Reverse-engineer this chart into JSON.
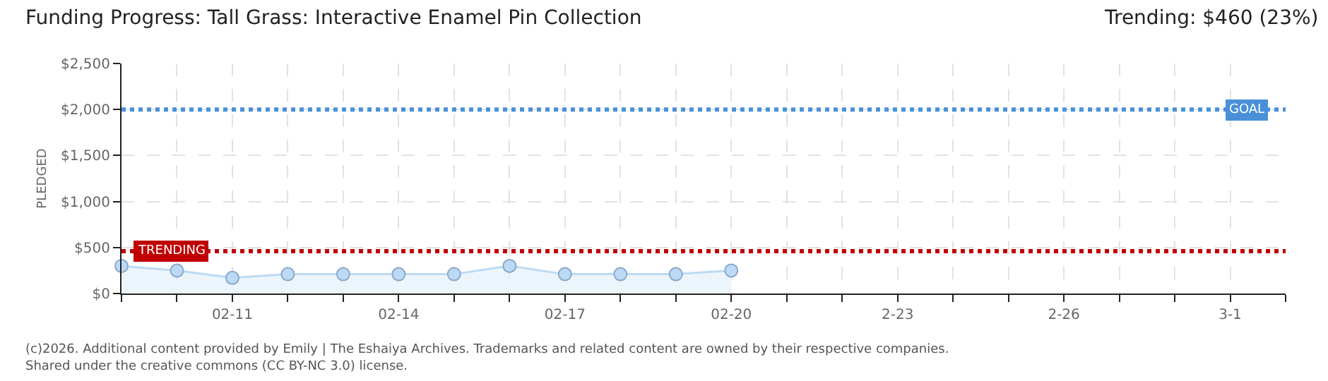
{
  "chart_data": {
    "type": "area",
    "title": "Funding Progress: Tall Grass: Interactive Enamel Pin Collection",
    "subtitle": "Trending: $460 (23%)",
    "ylabel": "PLEDGED",
    "x": [
      "--02-09",
      "--02-10",
      "--02-11",
      "--02-12",
      "--02-13",
      "--02-14",
      "--02-15",
      "--02-16",
      "--02-17",
      "--02-18",
      "--02-19",
      "--02-20"
    ],
    "series": [
      {
        "color": "#bcdaf5",
        "values": [
          300,
          250,
          170,
          210,
          210,
          210,
          210,
          300,
          210,
          210,
          210,
          250
        ]
      }
    ],
    "marker": "circle",
    "grid": true,
    "xlim": [
      "--02-09",
      "--03-02"
    ],
    "xticks": [
      {
        "value": "--02-09",
        "label": null
      },
      {
        "value": "--02-10",
        "label": null
      },
      {
        "value": "--02-11",
        "label": "02-11"
      },
      {
        "value": "--02-12",
        "label": null
      },
      {
        "value": "--02-13",
        "label": null
      },
      {
        "value": "--02-14",
        "label": "02-14"
      },
      {
        "value": "--02-15",
        "label": null
      },
      {
        "value": "--02-16",
        "label": null
      },
      {
        "value": "--02-17",
        "label": "02-17"
      },
      {
        "value": "--02-18",
        "label": null
      },
      {
        "value": "--02-19",
        "label": null
      },
      {
        "value": "--02-20",
        "label": "02-20"
      },
      {
        "value": "--02-21",
        "label": null
      },
      {
        "value": "--02-22",
        "label": null
      },
      {
        "value": "--02-23",
        "label": "2-23"
      },
      {
        "value": "--02-24",
        "label": null
      },
      {
        "value": "--02-25",
        "label": null
      },
      {
        "value": "--02-26",
        "label": "2-26"
      },
      {
        "value": "--02-27",
        "label": null
      },
      {
        "value": "--02-28",
        "label": null
      },
      {
        "value": "--03-01",
        "label": "3-1"
      },
      {
        "value": "--03-02",
        "label": null
      }
    ],
    "ylim": [
      0,
      2500
    ],
    "yticks": [
      {
        "value": 0,
        "label": "$0"
      },
      {
        "value": 500,
        "label": "$500"
      },
      {
        "value": 1000,
        "label": "$1,000"
      },
      {
        "value": 1500,
        "label": "$1,500"
      },
      {
        "value": 2000,
        "label": "$2,000"
      },
      {
        "value": 2500,
        "label": "$2,500"
      }
    ],
    "ref_lines": [
      {
        "axis": "y",
        "value": 2000,
        "label": "GOAL",
        "color": "#4a90d9",
        "line_style": "dotted"
      },
      {
        "axis": "y",
        "value": 460,
        "label": "TRENDING",
        "color": "#c00000",
        "line_style": "dotted"
      }
    ],
    "annotations": [
      "(c)2026. Additional content provided by Emily | The Eshaiya Archives. Trademarks and related content are owned by their respective companies.",
      "Shared under the creative commons (CC BY-NC 3.0) license."
    ]
  }
}
